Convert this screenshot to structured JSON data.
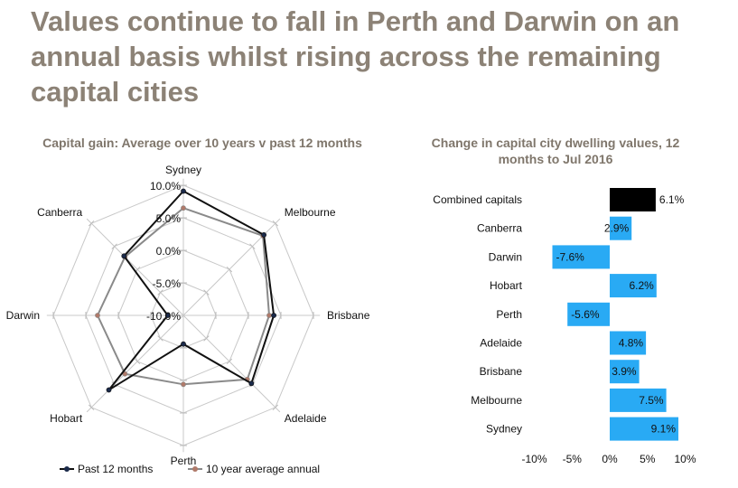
{
  "headline": "Values continue to fall in Perth and Darwin on an annual basis whilst rising across the remaining capital cities",
  "chart_data": [
    {
      "type": "radar",
      "title": "Capital gain: Average over 10 years v past 12 months",
      "axes": [
        "Sydney",
        "Melbourne",
        "Brisbane",
        "Adelaide",
        "Perth",
        "Hobart",
        "Darwin",
        "Canberra"
      ],
      "range": [
        -10.0,
        10.0
      ],
      "tick_labels": [
        "10.0%",
        "5.0%",
        "0.0%",
        "-5.0%",
        "-10.0%"
      ],
      "tick_values": [
        10,
        5,
        0,
        -5,
        -10
      ],
      "legend_position": "bottom",
      "series": [
        {
          "name": "Past 12 months",
          "color": "#111111",
          "values": [
            9.1,
            7.5,
            3.9,
            4.8,
            -5.6,
            6.2,
            -7.6,
            2.9
          ]
        },
        {
          "name": "10 year average annual",
          "color": "#8a8a8a",
          "marker_color": "#b07a6a",
          "values": [
            6.5,
            7.3,
            3.2,
            3.9,
            0.6,
            2.7,
            3.2,
            2.7
          ]
        }
      ]
    },
    {
      "type": "bar",
      "orientation": "horizontal",
      "title": "Change in capital city dwelling values, 12 months to Jul 2016",
      "categories": [
        "Combined capitals",
        "Canberra",
        "Darwin",
        "Hobart",
        "Perth",
        "Adelaide",
        "Brisbane",
        "Melbourne",
        "Sydney"
      ],
      "values": [
        6.1,
        2.9,
        -7.6,
        6.2,
        -5.6,
        4.8,
        3.9,
        7.5,
        9.1
      ],
      "data_labels": [
        "6.1%",
        "2.9%",
        "-7.6%",
        "6.2%",
        "-5.6%",
        "4.8%",
        "3.9%",
        "7.5%",
        "9.1%"
      ],
      "xlim": [
        -10,
        10
      ],
      "x_ticks": [
        -10,
        -5,
        0,
        5,
        10
      ],
      "x_tick_labels": [
        "-10%",
        "-5%",
        "0%",
        "5%",
        "10%"
      ],
      "colors": {
        "highlight": "#000000",
        "default": "#29aaf4"
      },
      "highlight_index": 0,
      "grid": false
    }
  ]
}
